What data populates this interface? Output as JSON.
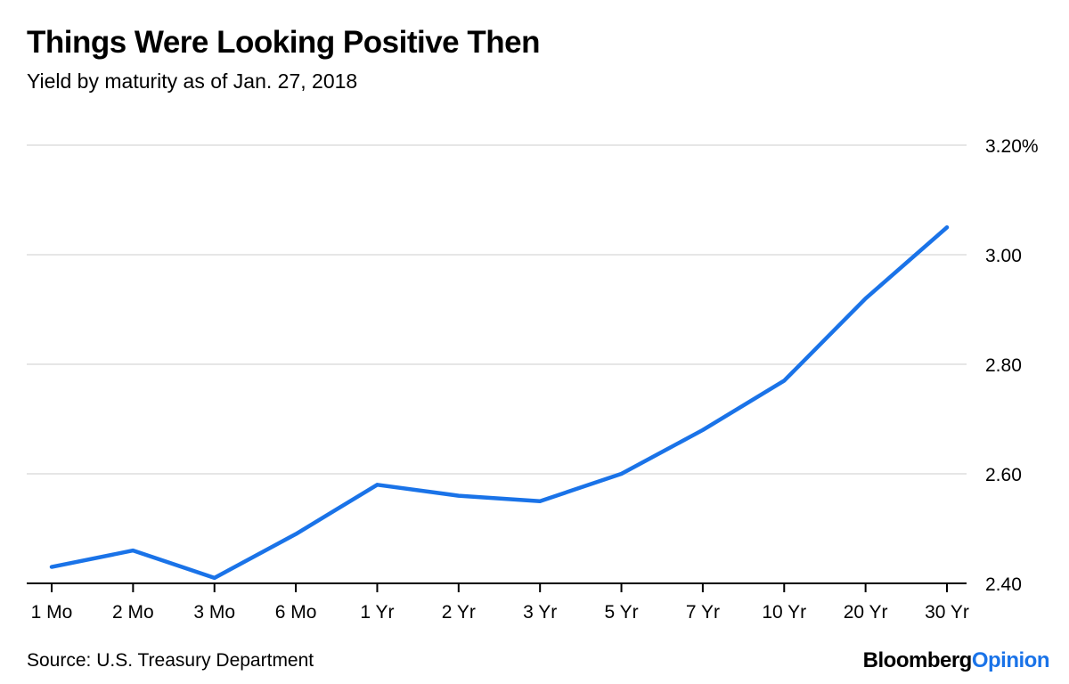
{
  "header": {
    "title": "Things Were Looking Positive Then",
    "subtitle": "Yield by maturity as of Jan. 27, 2018"
  },
  "footer": {
    "source": "Source: U.S. Treasury Department",
    "brand_part1": "Bloomberg",
    "brand_part2": "Opinion"
  },
  "colors": {
    "line": "#1a73e8",
    "grid": "#e6e6e6",
    "axis": "#000000"
  },
  "chart_data": {
    "type": "line",
    "title": "Things Were Looking Positive Then",
    "subtitle": "Yield by maturity as of Jan. 27, 2018",
    "xlabel": "",
    "ylabel": "",
    "categories": [
      "1 Mo",
      "2 Mo",
      "3 Mo",
      "6 Mo",
      "1 Yr",
      "2 Yr",
      "3 Yr",
      "5 Yr",
      "7 Yr",
      "10 Yr",
      "20 Yr",
      "30 Yr"
    ],
    "series": [
      {
        "values": [
          2.43,
          2.46,
          2.41,
          2.49,
          2.58,
          2.56,
          2.55,
          2.6,
          2.68,
          2.77,
          2.92,
          3.05
        ]
      }
    ],
    "ylim": [
      2.4,
      3.2
    ],
    "yticks": [
      2.4,
      2.6,
      2.8,
      3.0,
      3.2
    ],
    "ytick_labels": [
      "2.40",
      "2.60",
      "2.80",
      "3.00",
      "3.20%"
    ],
    "grid": true,
    "y_axis_position": "right"
  }
}
